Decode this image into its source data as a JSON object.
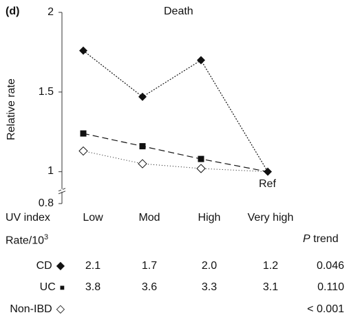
{
  "panel_label": "(d)",
  "chart_data": {
    "type": "line",
    "title": "Death",
    "ylabel": "Relative rate",
    "xlabel": "UV index",
    "categories": [
      "Low",
      "Mod",
      "High",
      "Very high"
    ],
    "ylim": [
      0.8,
      2
    ],
    "yticks": [
      2,
      1.5,
      1,
      0.8
    ],
    "ytick_labels": [
      "2",
      "1.5",
      "1",
      "0.8"
    ],
    "ref_label": "Ref",
    "series": [
      {
        "name": "CD",
        "marker": "filled-diamond",
        "line": "dotted-dense",
        "values": [
          1.76,
          1.47,
          1.7,
          1.0
        ]
      },
      {
        "name": "UC",
        "marker": "filled-square",
        "line": "dashed",
        "values": [
          1.24,
          1.16,
          1.08,
          1.0
        ]
      },
      {
        "name": "Non-IBD",
        "marker": "open-diamond",
        "line": "dotted-sparse",
        "values": [
          1.13,
          1.05,
          1.02,
          1.0
        ]
      }
    ]
  },
  "table": {
    "rate_header": "Rate/10",
    "rate_superscript": "3",
    "ptrend_header_italic": "P",
    "ptrend_header_rest": " trend",
    "rows": [
      {
        "label": "CD",
        "symbol": "◆",
        "values": [
          "2.1",
          "1.7",
          "2.0",
          "1.2"
        ],
        "p": "0.046"
      },
      {
        "label": "UC",
        "symbol": "■",
        "values": [
          "3.8",
          "3.6",
          "3.3",
          "3.1"
        ],
        "p": "0.110"
      },
      {
        "label": "Non-IBD",
        "symbol": "◇",
        "values": [
          "",
          "",
          "",
          ""
        ],
        "p": "< 0.001"
      }
    ]
  }
}
